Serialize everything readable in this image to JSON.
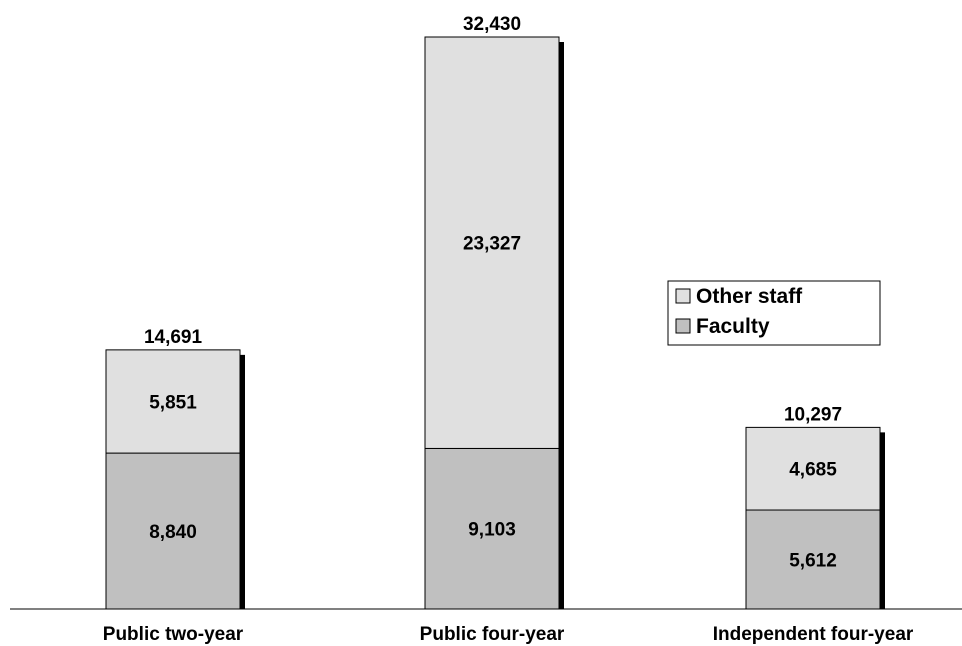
{
  "chart_data": {
    "type": "bar",
    "stacked": true,
    "categories": [
      "Public two-year",
      "Public four-year",
      "Independent four-year"
    ],
    "series": [
      {
        "name": "Faculty",
        "values": [
          8840,
          9103,
          5612
        ],
        "color": "#c0c0c0"
      },
      {
        "name": "Other staff",
        "values": [
          5851,
          23327,
          4685
        ],
        "color": "#e0e0e0"
      }
    ],
    "segment_labels": {
      "Faculty": [
        "8,840",
        "9,103",
        "5,612"
      ],
      "Other staff": [
        "5,851",
        "23,327",
        "4,685"
      ]
    },
    "totals": [
      14691,
      32430,
      10297
    ],
    "total_labels": [
      "14,691",
      "32,430",
      "10,297"
    ],
    "ylim": [
      0,
      32430
    ],
    "grid": false,
    "y_axis_visible": false,
    "legend": {
      "position": "right",
      "order": [
        "Other staff",
        "Faculty"
      ]
    },
    "bar_shadow": true
  }
}
